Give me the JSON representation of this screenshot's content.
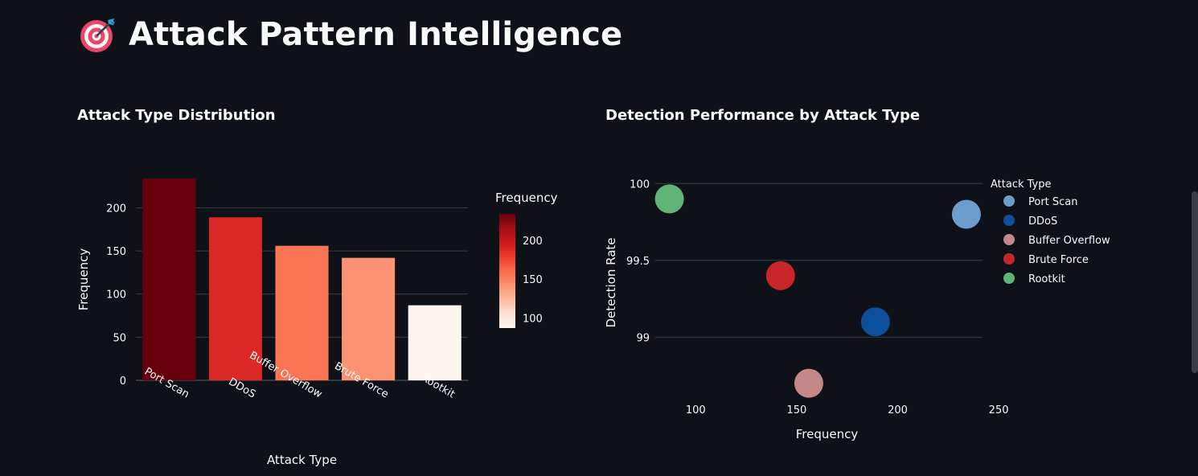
{
  "page": {
    "title": "Attack Pattern Intelligence",
    "title_icon": "target-dart-icon"
  },
  "colors": {
    "background": "#0e1117",
    "text": "#fafafa",
    "grid": "#3a3d46"
  },
  "chart_data": [
    {
      "type": "bar",
      "title": "Attack Type Distribution",
      "xlabel": "Attack Type",
      "ylabel": "Frequency",
      "categories": [
        "Port Scan",
        "DDoS",
        "Buffer Overflow",
        "Brute Force",
        "Rootkit"
      ],
      "values": [
        234,
        189,
        156,
        142,
        87
      ],
      "ylim": [
        0,
        234
      ],
      "yticks": [
        0,
        50,
        100,
        150,
        200
      ],
      "grid": true,
      "colorscale": "Reds",
      "colorbar": {
        "title": "Frequency",
        "ticks": [
          100,
          150,
          200
        ],
        "range": [
          87,
          234
        ]
      }
    },
    {
      "type": "scatter",
      "title": "Detection Performance by Attack Type",
      "xlabel": "Frequency",
      "ylabel": "Detection Rate",
      "xticks": [
        100,
        150,
        200,
        250
      ],
      "yticks": [
        99,
        99.5,
        100
      ],
      "xlim": [
        80,
        242
      ],
      "ylim": [
        98.63,
        100.08
      ],
      "grid": true,
      "legend_title": "Attack Type",
      "legend_position": "right",
      "series": [
        {
          "name": "Port Scan",
          "x": 234,
          "y": 99.8,
          "color": "#6d9ecb"
        },
        {
          "name": "DDoS",
          "x": 189,
          "y": 99.1,
          "color": "#0d4f9a"
        },
        {
          "name": "Buffer Overflow",
          "x": 156,
          "y": 98.7,
          "color": "#c48888"
        },
        {
          "name": "Brute Force",
          "x": 142,
          "y": 99.4,
          "color": "#c8252b"
        },
        {
          "name": "Rootkit",
          "x": 87,
          "y": 99.9,
          "color": "#5fb376"
        }
      ]
    }
  ]
}
